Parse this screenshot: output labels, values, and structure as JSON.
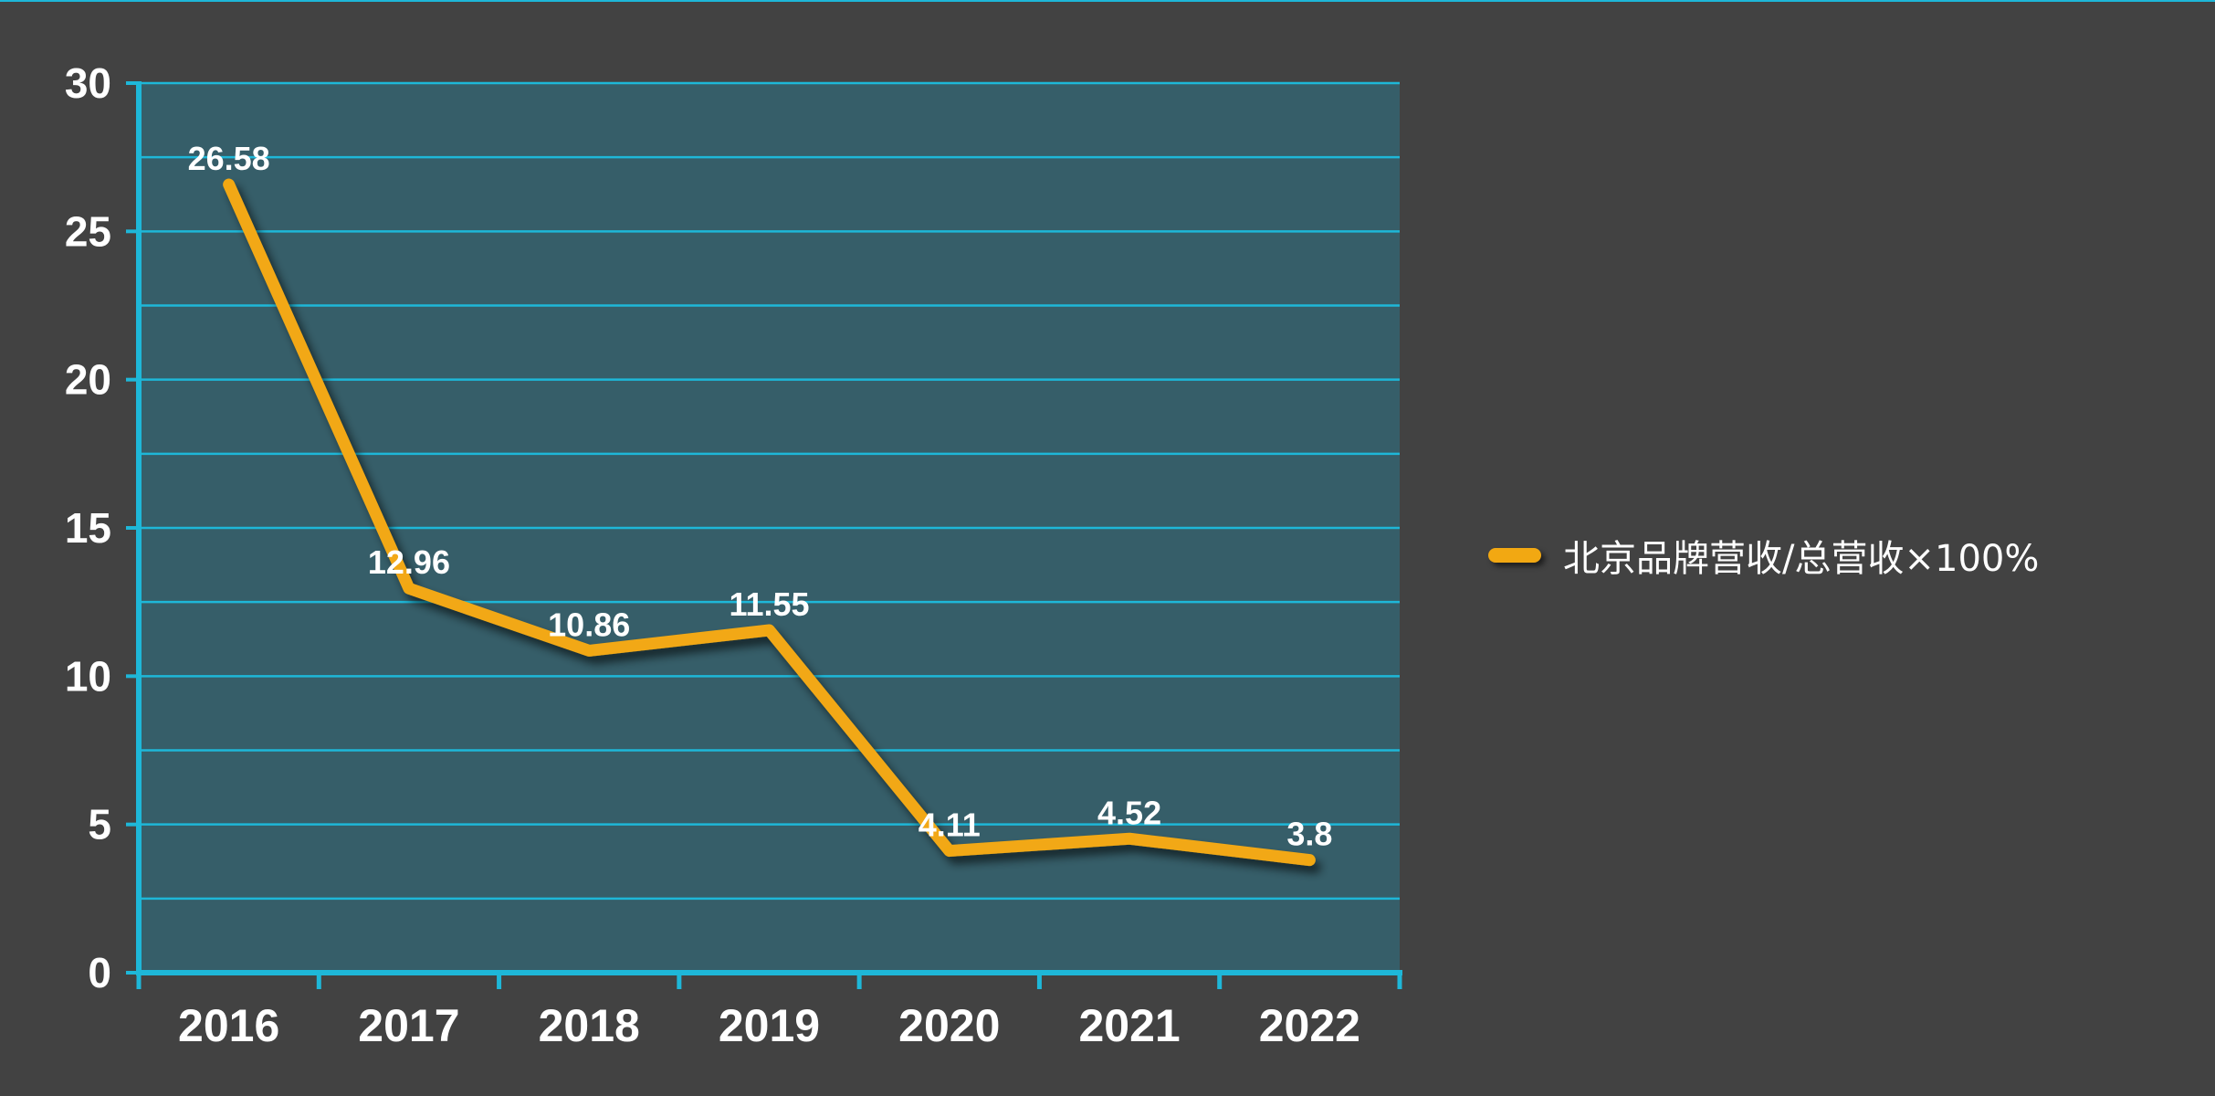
{
  "chart_data": {
    "type": "line",
    "categories": [
      "2016",
      "2017",
      "2018",
      "2019",
      "2020",
      "2021",
      "2022"
    ],
    "series": [
      {
        "name": "北京品牌营收/总营收×100%",
        "values": [
          26.58,
          12.96,
          10.86,
          11.55,
          4.11,
          4.52,
          3.8
        ],
        "color": "#f2a812"
      }
    ],
    "data_labels": [
      "26.58",
      "12.96",
      "10.86",
      "11.55",
      "4.11",
      "4.52",
      "3.8"
    ],
    "y_ticks": [
      "0",
      "5",
      "10",
      "15",
      "20",
      "25",
      "30"
    ],
    "ylim": [
      0,
      30
    ],
    "grid": true,
    "legend_position": "right",
    "colors": {
      "background": "#424242",
      "plot_fill": "#365e69",
      "axis": "#1eb7d8",
      "line": "#f2a812",
      "text": "#ffffff"
    }
  }
}
